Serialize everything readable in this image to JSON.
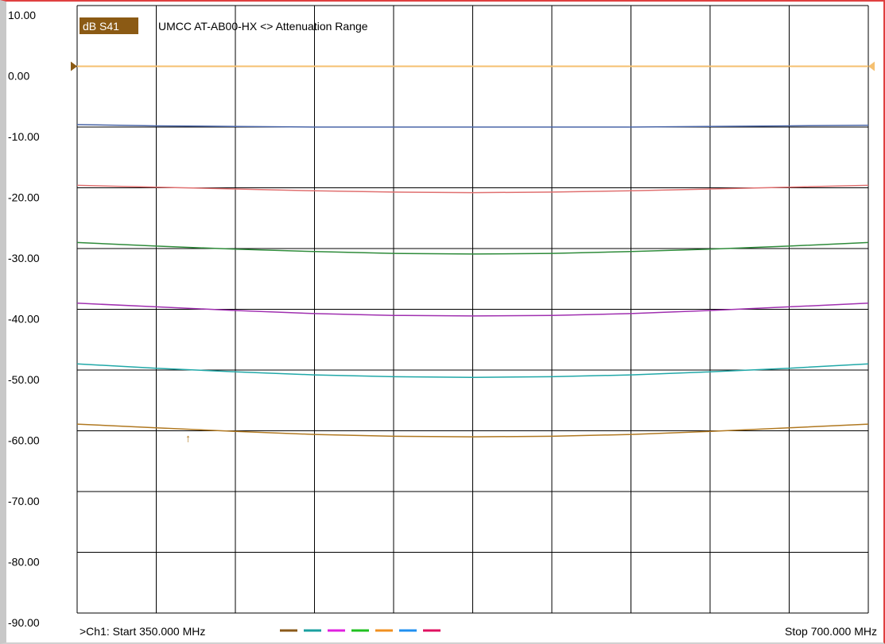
{
  "chart_data": {
    "type": "line",
    "channel_badge": "dB S41",
    "title": "UMCC  AT-AB00-HX <> Attenuation Range",
    "ylim": [
      -90,
      10
    ],
    "xlim": [
      350,
      700
    ],
    "grid": true,
    "y_ticks": [
      "10.00",
      "0.00",
      "-10.00",
      "-20.00",
      "-30.00",
      "-40.00",
      "-50.00",
      "-60.00",
      "-70.00",
      "-80.00",
      "-90.00"
    ],
    "reference_level": 0,
    "x": [
      350,
      385,
      420,
      455,
      490,
      525,
      560,
      595,
      630,
      665,
      700
    ],
    "series": [
      {
        "values": [
          -9.6,
          -9.8,
          -9.9,
          -10.0,
          -10.0,
          -10.0,
          -10.0,
          -10.0,
          -9.9,
          -9.8,
          -9.7
        ]
      },
      {
        "values": [
          -19.6,
          -19.9,
          -20.2,
          -20.5,
          -20.7,
          -20.8,
          -20.7,
          -20.5,
          -20.2,
          -19.9,
          -19.6
        ]
      },
      {
        "values": [
          -29.0,
          -29.6,
          -30.1,
          -30.5,
          -30.8,
          -30.9,
          -30.8,
          -30.5,
          -30.1,
          -29.6,
          -29.0
        ]
      },
      {
        "values": [
          -39.0,
          -39.6,
          -40.2,
          -40.7,
          -41.0,
          -41.1,
          -41.0,
          -40.7,
          -40.2,
          -39.6,
          -39.0
        ]
      },
      {
        "values": [
          -49.0,
          -49.7,
          -50.3,
          -50.8,
          -51.1,
          -51.2,
          -51.1,
          -50.8,
          -50.3,
          -49.7,
          -49.0
        ]
      },
      {
        "values": [
          -58.9,
          -59.5,
          -60.1,
          -60.6,
          -60.9,
          -61.0,
          -60.9,
          -60.6,
          -60.1,
          -59.5,
          -58.9
        ]
      }
    ],
    "series_colors": [
      "#4a66a8",
      "#e07070",
      "#2e8b3a",
      "#a030b0",
      "#20a8a8",
      "#b07820"
    ],
    "reference_color": "#f5c070",
    "legend_colors": [
      "#8b5a1a",
      "#1aa0a0",
      "#e020e0",
      "#20c020",
      "#f09020",
      "#2090f0",
      "#e01060"
    ],
    "footer_start": ">Ch1: Start  350.000 MHz",
    "footer_stop": "Stop  700.000 MHz",
    "marker_symbol": "↑",
    "marker_x": 400
  }
}
